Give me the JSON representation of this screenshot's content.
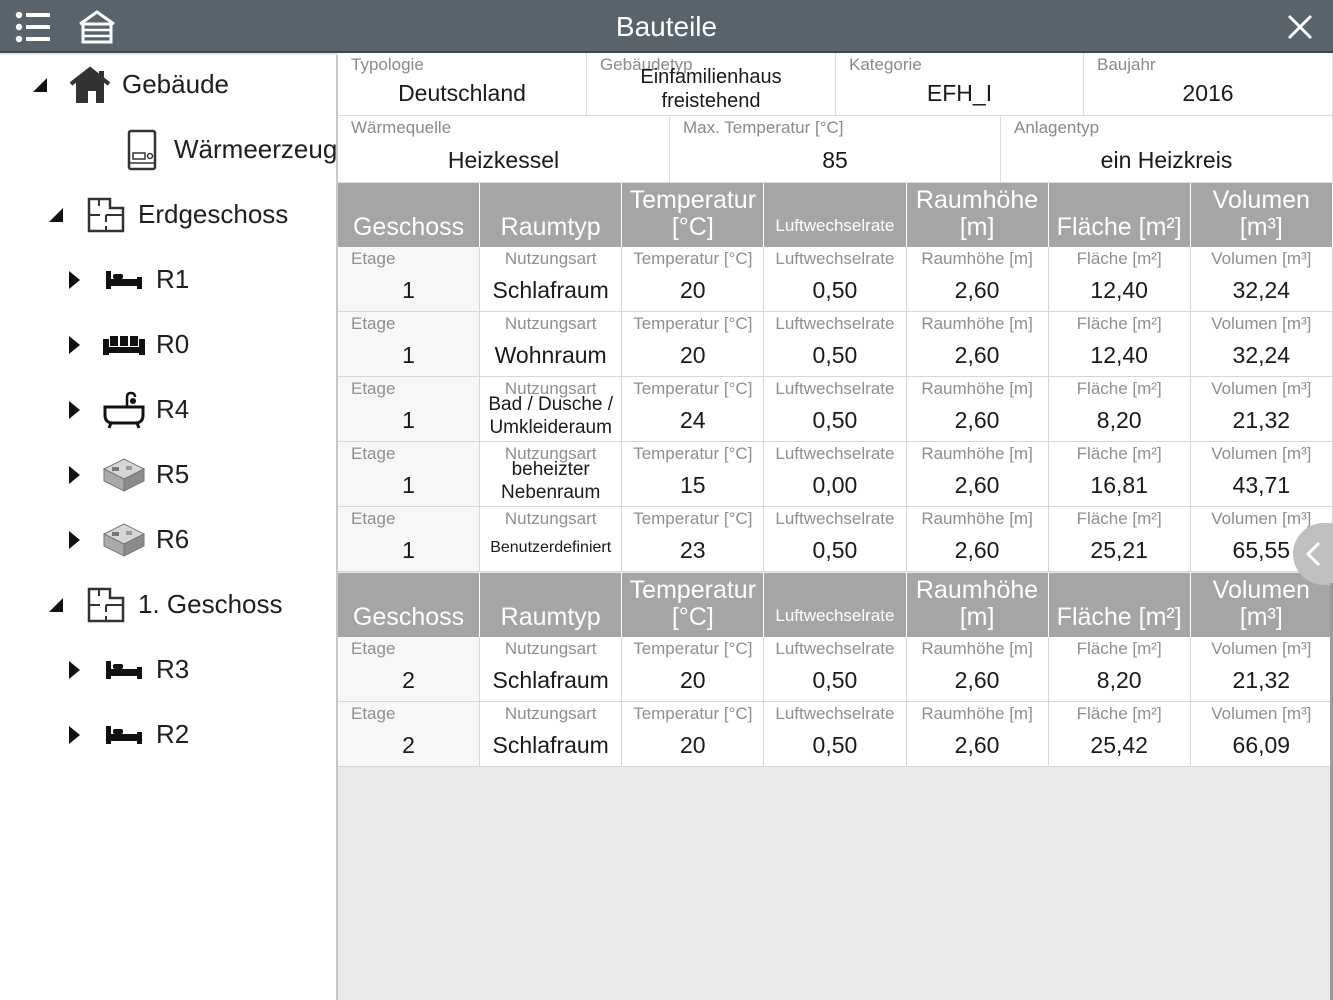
{
  "window": {
    "title": "Bauteile"
  },
  "tree": [
    {
      "label": "Gebäude",
      "icon": "house-icon",
      "toggle": "expanded"
    },
    {
      "label": "Wärmeerzeuger",
      "icon": "boiler-icon",
      "toggle": "none"
    },
    {
      "label": "Erdgeschoss",
      "icon": "floorplan-icon",
      "toggle": "expanded"
    },
    {
      "label": "R1",
      "icon": "bed-icon",
      "toggle": "collapsed"
    },
    {
      "label": "R0",
      "icon": "sofa-icon",
      "toggle": "collapsed"
    },
    {
      "label": "R4",
      "icon": "bathtub-icon",
      "toggle": "collapsed"
    },
    {
      "label": "R5",
      "icon": "room-3d-icon",
      "toggle": "collapsed"
    },
    {
      "label": "R6",
      "icon": "room-3d-icon",
      "toggle": "collapsed"
    },
    {
      "label": "1. Geschoss",
      "icon": "floorplan-icon",
      "toggle": "expanded"
    },
    {
      "label": "R3",
      "icon": "bed-icon",
      "toggle": "collapsed"
    },
    {
      "label": "R2",
      "icon": "bed-icon",
      "toggle": "collapsed"
    }
  ],
  "building_info": {
    "row1": [
      {
        "label": "Typologie",
        "value": "Deutschland"
      },
      {
        "label": "Gebäudetyp",
        "value": "Einfamilienhaus freistehend"
      },
      {
        "label": "Kategorie",
        "value": "EFH_I"
      },
      {
        "label": "Baujahr",
        "value": "2016"
      }
    ],
    "row2": [
      {
        "label": "Wärmequelle",
        "value": "Heizkessel"
      },
      {
        "label": "Max. Temperatur [°C]",
        "value": "85"
      },
      {
        "label": "Anlagentyp",
        "value": "ein Heizkreis"
      }
    ]
  },
  "table": {
    "headers": [
      "Geschoss",
      "Raumtyp",
      "Temperatur [°C]",
      "Luftwechselrate",
      "Raumhöhe [m]",
      "Fläche [m²]",
      "Volumen [m³]"
    ],
    "cell_labels": [
      "Etage",
      "Nutzungsart",
      "Temperatur [°C]",
      "Luftwechselrate",
      "Raumhöhe [m]",
      "Fläche [m²]",
      "Volumen [m³]"
    ],
    "groups": [
      {
        "rows": [
          [
            "1",
            "Schlafraum",
            "20",
            "0,50",
            "2,60",
            "12,40",
            "32,24"
          ],
          [
            "1",
            "Wohnraum",
            "20",
            "0,50",
            "2,60",
            "12,40",
            "32,24"
          ],
          [
            "1",
            "Bad / Dusche / Umkleideraum",
            "24",
            "0,50",
            "2,60",
            "8,20",
            "21,32"
          ],
          [
            "1",
            "beheizter Nebenraum",
            "15",
            "0,00",
            "2,60",
            "16,81",
            "43,71"
          ],
          [
            "1",
            "Benutzerdefiniert",
            "23",
            "0,50",
            "2,60",
            "25,21",
            "65,55"
          ]
        ]
      },
      {
        "rows": [
          [
            "2",
            "Schlafraum",
            "20",
            "0,50",
            "2,60",
            "8,20",
            "21,32"
          ],
          [
            "2",
            "Schlafraum",
            "20",
            "0,50",
            "2,60",
            "25,42",
            "66,09"
          ]
        ]
      }
    ]
  },
  "colors": {
    "topbar": "#58636c",
    "header_bg": "#a5a5a5",
    "page_bg": "#e9e9e9"
  }
}
